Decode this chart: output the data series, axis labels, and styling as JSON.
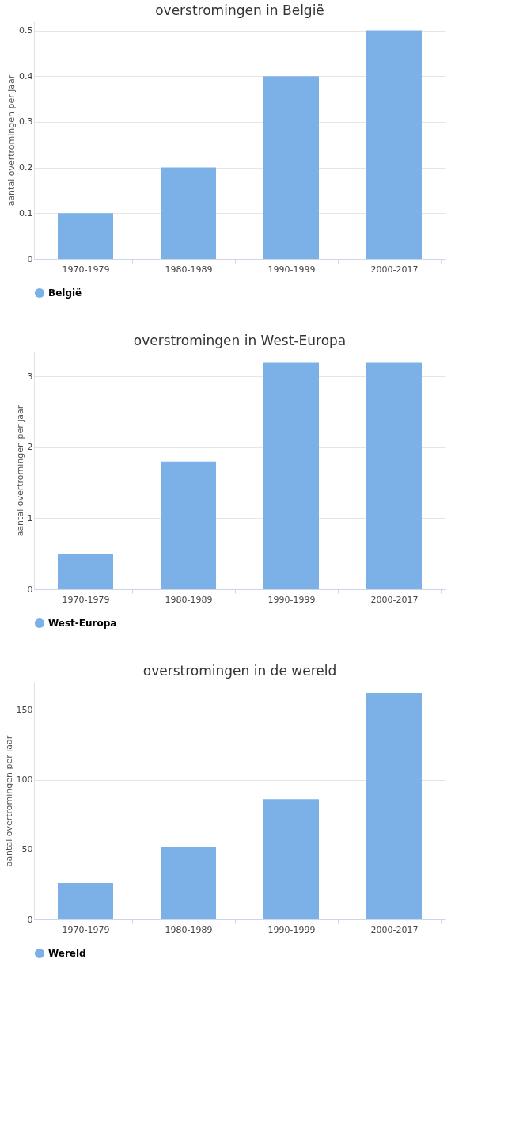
{
  "chart_data": [
    {
      "type": "bar",
      "title": "overstromingen in België",
      "ylabel": "aantal overtromingen per jaar",
      "categories": [
        "1970-1979",
        "1980-1989",
        "1990-1999",
        "2000-2017"
      ],
      "series": [
        {
          "name": "België",
          "color": "#7cb1e8",
          "values": [
            0.1,
            0.2,
            0.4,
            0.5
          ]
        }
      ],
      "ylim": [
        0,
        0.52
      ],
      "yticks": [
        0,
        0.1,
        0.2,
        0.3,
        0.4,
        0.5
      ],
      "grid": "y",
      "legend": "bottom"
    },
    {
      "type": "bar",
      "title": "overstromingen in West-Europa",
      "ylabel": "aantal overtromingen per jaar",
      "categories": [
        "1970-1979",
        "1980-1989",
        "1990-1999",
        "2000-2017"
      ],
      "series": [
        {
          "name": "West-Europa",
          "color": "#7cb1e8",
          "values": [
            0.5,
            1.8,
            3.2,
            3.2
          ]
        }
      ],
      "ylim": [
        0,
        3.35
      ],
      "yticks": [
        0,
        1,
        2,
        3
      ],
      "grid": "y",
      "legend": "bottom"
    },
    {
      "type": "bar",
      "title": "overstromingen in de wereld",
      "ylabel": "aantal overtromingen per jaar",
      "categories": [
        "1970-1979",
        "1980-1989",
        "1990-1999",
        "2000-2017"
      ],
      "series": [
        {
          "name": "Wereld",
          "color": "#7cb1e8",
          "values": [
            26,
            52,
            86,
            162
          ]
        }
      ],
      "ylim": [
        0,
        170
      ],
      "yticks": [
        0,
        50,
        100,
        150
      ],
      "grid": "y",
      "legend": "bottom"
    }
  ]
}
